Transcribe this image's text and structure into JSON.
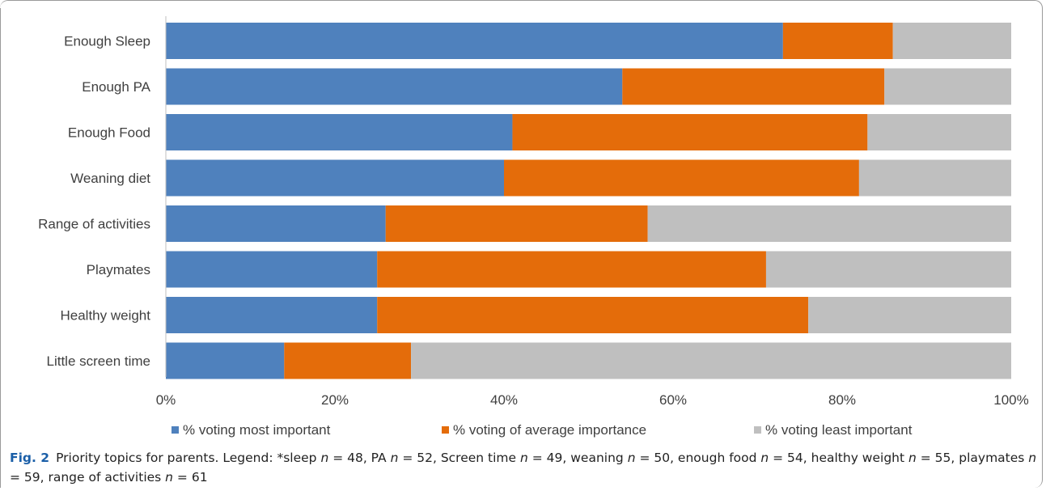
{
  "chart_data": {
    "type": "bar",
    "orientation": "horizontal",
    "stacked": true,
    "percent_scale": true,
    "categories": [
      "Enough Sleep",
      "Enough PA",
      "Enough Food",
      "Weaning diet",
      "Range of activities",
      "Playmates",
      "Healthy weight",
      "Little screen time"
    ],
    "series": [
      {
        "name": "% voting most important",
        "color": "#4f81bd",
        "values": [
          73,
          54,
          41,
          40,
          26,
          25,
          25,
          14
        ]
      },
      {
        "name": "% voting of average importance",
        "color": "#e46c0a",
        "values": [
          13,
          31,
          42,
          42,
          31,
          46,
          51,
          15
        ]
      },
      {
        "name": "% voting least important",
        "color": "#bfbfbf",
        "values": [
          14,
          15,
          17,
          18,
          43,
          29,
          24,
          71
        ]
      }
    ],
    "xlim": [
      0,
      100
    ],
    "xticks": [
      "0%",
      "20%",
      "40%",
      "60%",
      "80%",
      "100%"
    ],
    "legend_position": "bottom",
    "grid": false
  },
  "caption": {
    "figure_label": "Fig. 2",
    "parts": [
      {
        "t": "Priority topics for parents. Legend: *sleep ",
        "i": false
      },
      {
        "t": "n",
        "i": true
      },
      {
        "t": " = 48, PA ",
        "i": false
      },
      {
        "t": "n",
        "i": true
      },
      {
        "t": " = 52, Screen time ",
        "i": false
      },
      {
        "t": "n",
        "i": true
      },
      {
        "t": " = 49, weaning ",
        "i": false
      },
      {
        "t": "n",
        "i": true
      },
      {
        "t": " = 50, enough food ",
        "i": false
      },
      {
        "t": "n",
        "i": true
      },
      {
        "t": " = 54, healthy weight ",
        "i": false
      },
      {
        "t": "n",
        "i": true
      },
      {
        "t": " = 55, playmates ",
        "i": false
      },
      {
        "t": "n",
        "i": true
      },
      {
        "t": " = 59, range of activities ",
        "i": false
      },
      {
        "t": "n",
        "i": true
      },
      {
        "t": " = 61",
        "i": false
      }
    ]
  }
}
